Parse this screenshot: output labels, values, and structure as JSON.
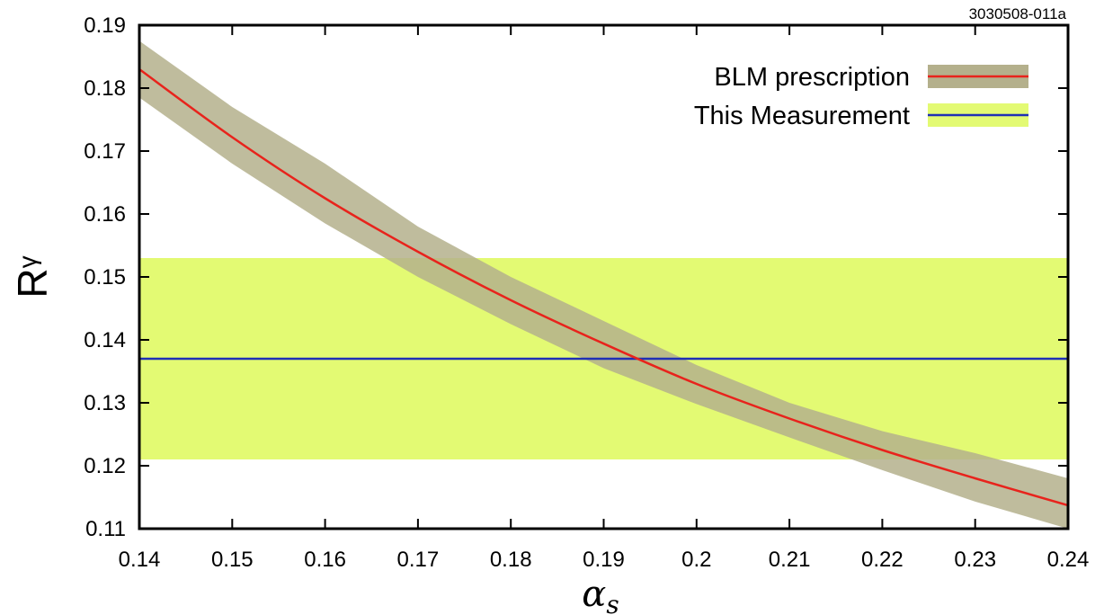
{
  "figure_code": "3030508-011a",
  "chart_data": {
    "type": "line",
    "xlabel": "α",
    "xlabel_sub": "s",
    "ylabel": "R",
    "ylabel_sub": "γ",
    "xlim": [
      0.14,
      0.24
    ],
    "ylim": [
      0.11,
      0.19
    ],
    "x_ticks": [
      "0.14",
      "0.15",
      "0.16",
      "0.17",
      "0.18",
      "0.19",
      "0.2",
      "0.21",
      "0.22",
      "0.23",
      "0.24"
    ],
    "y_ticks": [
      "0.11",
      "0.12",
      "0.13",
      "0.14",
      "0.15",
      "0.16",
      "0.17",
      "0.18",
      "0.19"
    ],
    "grid": false,
    "legend_position": "top-right",
    "series": [
      {
        "name": "BLM prescription",
        "kind": "curve-with-band",
        "line_color": "#e8231c",
        "band_color": "#b4b08c",
        "x": [
          0.14,
          0.15,
          0.16,
          0.17,
          0.18,
          0.19,
          0.2,
          0.21,
          0.22,
          0.23,
          0.24
        ],
        "y": [
          0.183,
          0.1722,
          0.1625,
          0.154,
          0.1463,
          0.1394,
          0.133,
          0.1275,
          0.1225,
          0.118,
          0.1137
        ],
        "band_upper": [
          0.1875,
          0.177,
          0.168,
          0.158,
          0.15,
          0.143,
          0.136,
          0.13,
          0.1255,
          0.122,
          0.118
        ],
        "band_lower": [
          0.1785,
          0.168,
          0.1585,
          0.15,
          0.1425,
          0.1355,
          0.1298,
          0.1245,
          0.1193,
          0.1143,
          0.11
        ]
      },
      {
        "name": "This Measurement",
        "kind": "horizontal-with-band",
        "line_color": "#1f2fb5",
        "band_color": "#e3fa73",
        "value": 0.137,
        "band_upper": 0.153,
        "band_lower": 0.121
      }
    ]
  }
}
